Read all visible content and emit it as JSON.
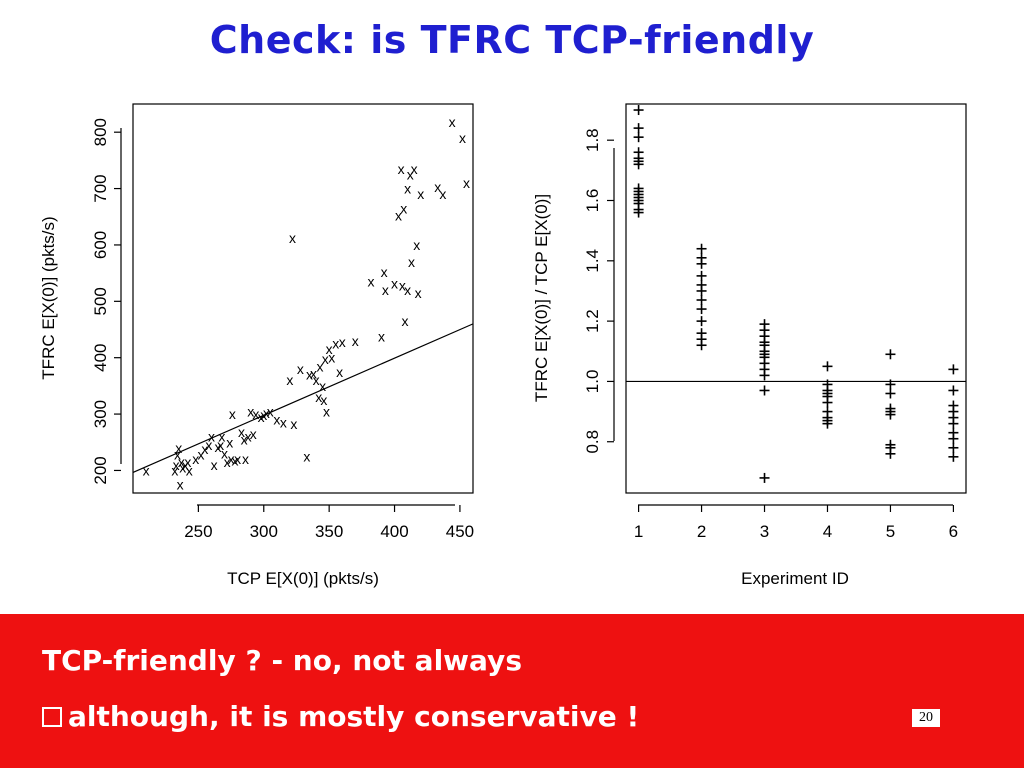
{
  "slide": {
    "title": "Check: is TFRC TCP-friendly",
    "bullet1": "TCP-friendly ? - no, not always",
    "bullet2": "although, it is mostly conservative !",
    "page_number": "20"
  },
  "colors": {
    "title": "#1f1fd0",
    "band": "#ee1111"
  },
  "chart_data": [
    {
      "type": "scatter",
      "xlabel": "TCP E[X(0)] (pkts/s)",
      "ylabel": "TFRC E[X(0)] (pkts/s)",
      "xlim": [
        200,
        460
      ],
      "ylim": [
        160,
        850
      ],
      "xticks": [
        "250",
        "300",
        "350",
        "400",
        "450"
      ],
      "yticks": [
        "200",
        "300",
        "400",
        "500",
        "600",
        "700",
        "800"
      ],
      "marker": "x",
      "reference_line": {
        "from": [
          200,
          200
        ],
        "to": [
          460,
          460
        ]
      },
      "x": [
        210,
        232,
        233,
        234,
        235,
        236,
        237,
        238,
        240,
        242,
        243,
        248,
        252,
        255,
        258,
        260,
        262,
        265,
        267,
        268,
        270,
        272,
        274,
        275,
        276,
        278,
        280,
        283,
        285,
        286,
        288,
        290,
        292,
        294,
        298,
        300,
        302,
        305,
        310,
        315,
        320,
        322,
        323,
        328,
        333,
        335,
        338,
        340,
        342,
        343,
        345,
        346,
        347,
        348,
        350,
        352,
        355,
        358,
        360,
        370,
        382,
        390,
        392,
        393,
        400,
        403,
        405,
        406,
        407,
        408,
        410,
        410,
        412,
        413,
        415,
        417,
        418,
        420,
        433,
        437,
        444,
        452,
        455
      ],
      "y": [
        200,
        200,
        210,
        228,
        240,
        175,
        215,
        205,
        210,
        215,
        200,
        220,
        228,
        238,
        245,
        260,
        210,
        242,
        245,
        260,
        230,
        215,
        250,
        220,
        300,
        218,
        220,
        268,
        255,
        220,
        260,
        305,
        265,
        300,
        295,
        298,
        302,
        305,
        290,
        285,
        360,
        612,
        282,
        380,
        225,
        370,
        372,
        360,
        330,
        384,
        350,
        325,
        398,
        305,
        415,
        400,
        425,
        375,
        428,
        430,
        535,
        438,
        552,
        520,
        532,
        652,
        735,
        528,
        665,
        465,
        700,
        520,
        725,
        570,
        735,
        600,
        515,
        690,
        703,
        690,
        818,
        790,
        710
      ]
    },
    {
      "type": "scatter",
      "xlabel": "Experiment ID",
      "ylabel": "TFRC E[X(0)] / TCP E[X(0)]",
      "xlim": [
        0.8,
        6.2
      ],
      "ylim": [
        0.63,
        1.92
      ],
      "xticks": [
        "1",
        "2",
        "3",
        "4",
        "5",
        "6"
      ],
      "yticks": [
        "0.8",
        "1.0",
        "1.2",
        "1.4",
        "1.6",
        "1.8"
      ],
      "marker": "+",
      "reference_line": {
        "y": 1.0
      },
      "x": [
        1,
        1,
        1,
        1,
        1,
        1,
        1,
        1,
        1,
        1,
        1,
        1,
        1,
        1,
        1,
        2,
        2,
        2,
        2,
        2,
        2,
        2,
        2,
        2,
        2,
        2,
        2,
        3,
        3,
        3,
        3,
        3,
        3,
        3,
        3,
        3,
        3,
        3,
        3,
        3,
        4,
        4,
        4,
        4,
        4,
        4,
        4,
        4,
        4,
        4,
        5,
        5,
        5,
        5,
        5,
        5,
        5,
        5,
        5,
        6,
        6,
        6,
        6,
        6,
        6,
        6,
        6,
        6,
        6
      ],
      "y": [
        1.9,
        1.84,
        1.81,
        1.76,
        1.74,
        1.73,
        1.72,
        1.64,
        1.63,
        1.62,
        1.61,
        1.6,
        1.59,
        1.57,
        1.56,
        1.44,
        1.41,
        1.39,
        1.35,
        1.32,
        1.3,
        1.27,
        1.24,
        1.2,
        1.16,
        1.14,
        1.12,
        1.19,
        1.17,
        1.15,
        1.13,
        1.12,
        1.1,
        1.09,
        1.08,
        1.06,
        1.04,
        1.02,
        0.97,
        0.68,
        1.05,
        0.99,
        0.97,
        0.96,
        0.95,
        0.93,
        0.9,
        0.88,
        0.87,
        0.86,
        1.09,
        0.99,
        0.96,
        0.91,
        0.9,
        0.89,
        0.79,
        0.78,
        0.76,
        1.04,
        0.97,
        0.92,
        0.9,
        0.88,
        0.86,
        0.83,
        0.81,
        0.78,
        0.75
      ]
    }
  ]
}
